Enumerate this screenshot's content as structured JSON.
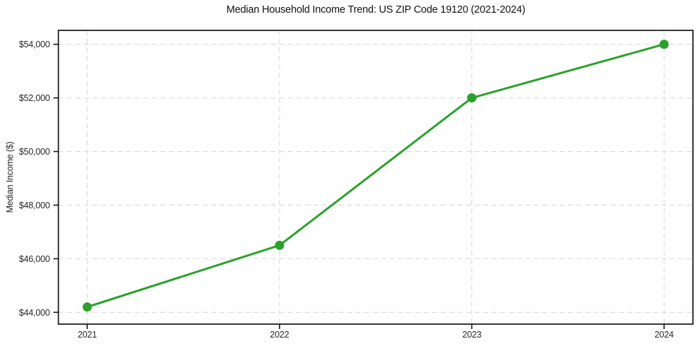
{
  "chart_data": {
    "type": "line",
    "title": "Median Household Income Trend: US ZIP Code 19120 (2021-2024)",
    "xlabel": "",
    "ylabel": "Median Income ($)",
    "x": [
      2021,
      2022,
      2023,
      2024
    ],
    "series": [
      {
        "name": "Median Household Income",
        "values": [
          44200,
          46500,
          52000,
          54000
        ]
      }
    ],
    "xticks": [
      2021,
      2022,
      2023,
      2024
    ],
    "xtick_labels": [
      "2021",
      "2022",
      "2023",
      "2024"
    ],
    "yticks": [
      44000,
      46000,
      48000,
      50000,
      52000,
      54000
    ],
    "ytick_labels": [
      "$44,000",
      "$46,000",
      "$48,000",
      "$50,000",
      "$52,000",
      "$54,000"
    ],
    "xlim": [
      2020.85,
      2024.15
    ],
    "ylim": [
      43560,
      54520
    ],
    "grid": true,
    "grid_style": "dashed",
    "legend": false,
    "colors": {
      "line": "#2ca02c",
      "marker": "#2ca02c",
      "grid": "#d9d9d9",
      "spine": "#141414",
      "text": "#262626",
      "background": "#ffffff"
    }
  }
}
